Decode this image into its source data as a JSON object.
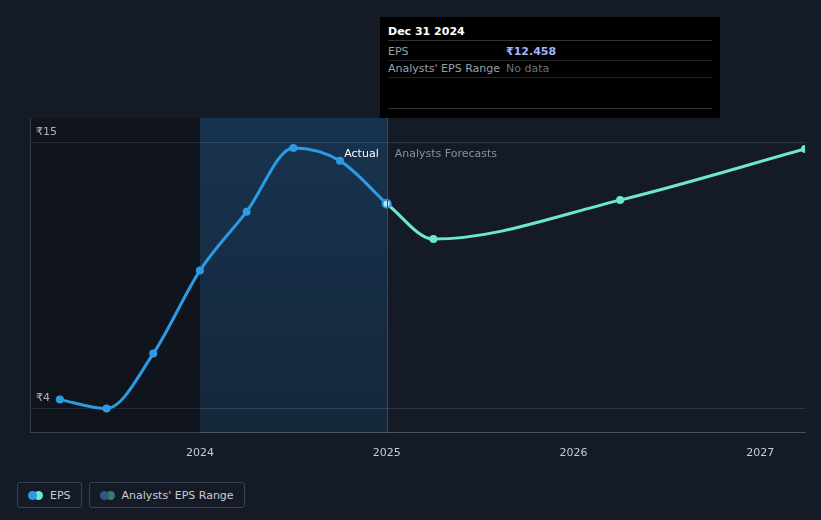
{
  "chart_data": {
    "type": "line",
    "x": [
      2023.25,
      2023.5,
      2023.75,
      2024,
      2024.25,
      2024.5,
      2024.75,
      2025,
      2025.25,
      2026.25,
      2027.24
    ],
    "series": [
      {
        "name": "Actual",
        "color": "#2d9be3",
        "values": [
          4.37,
          4.0,
          6.27,
          9.7,
          12.13,
          14.76,
          14.23,
          12.458,
          null,
          null,
          null
        ]
      },
      {
        "name": "Analysts Forecasts",
        "color": "#6ee6d0",
        "values": [
          null,
          null,
          null,
          null,
          null,
          null,
          null,
          12.458,
          11.0,
          12.61,
          14.72
        ]
      }
    ],
    "xlim": [
      2023.09,
      2027.24
    ],
    "xticks": [
      2024,
      2025,
      2026,
      2027
    ],
    "ylim": [
      3,
      16
    ],
    "yticks": [
      {
        "value": 4,
        "label": "₹4"
      },
      {
        "value": 15,
        "label": "₹15"
      }
    ],
    "grid": true,
    "tooltip": {
      "title": "Dec 31 2024",
      "rows": [
        [
          "EPS",
          "₹12.458"
        ],
        [
          "Analysts' EPS Range",
          "No data"
        ]
      ]
    },
    "legend_entries": [
      {
        "label": "EPS",
        "colors": [
          "#2d9be3",
          "#6ee6d0"
        ]
      },
      {
        "label": "Analysts' EPS Range",
        "colors": [
          "#2b5a85",
          "#3b7a74"
        ]
      }
    ]
  }
}
